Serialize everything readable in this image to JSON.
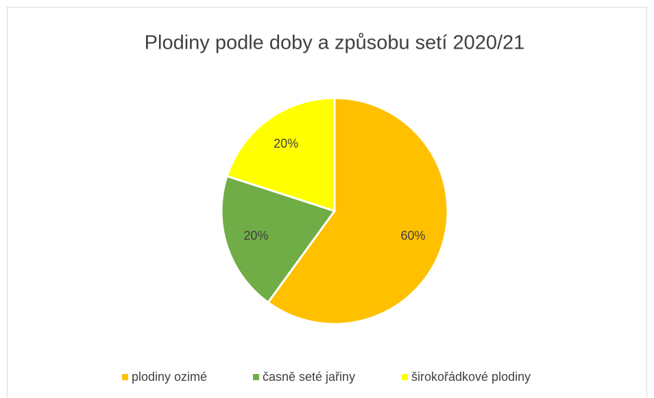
{
  "chart_data": {
    "type": "pie",
    "title": "Plodiny podle doby a způsobu setí 2020/21",
    "categories": [
      "plodiny ozimé",
      "časně seté jařiny",
      "širokořádkové plodiny"
    ],
    "values": [
      60,
      20,
      20
    ],
    "value_labels": [
      "60%",
      "20%",
      "20%"
    ],
    "colors": [
      "#FFC000",
      "#70AD47",
      "#FFFF00"
    ],
    "legend": "bottom"
  }
}
